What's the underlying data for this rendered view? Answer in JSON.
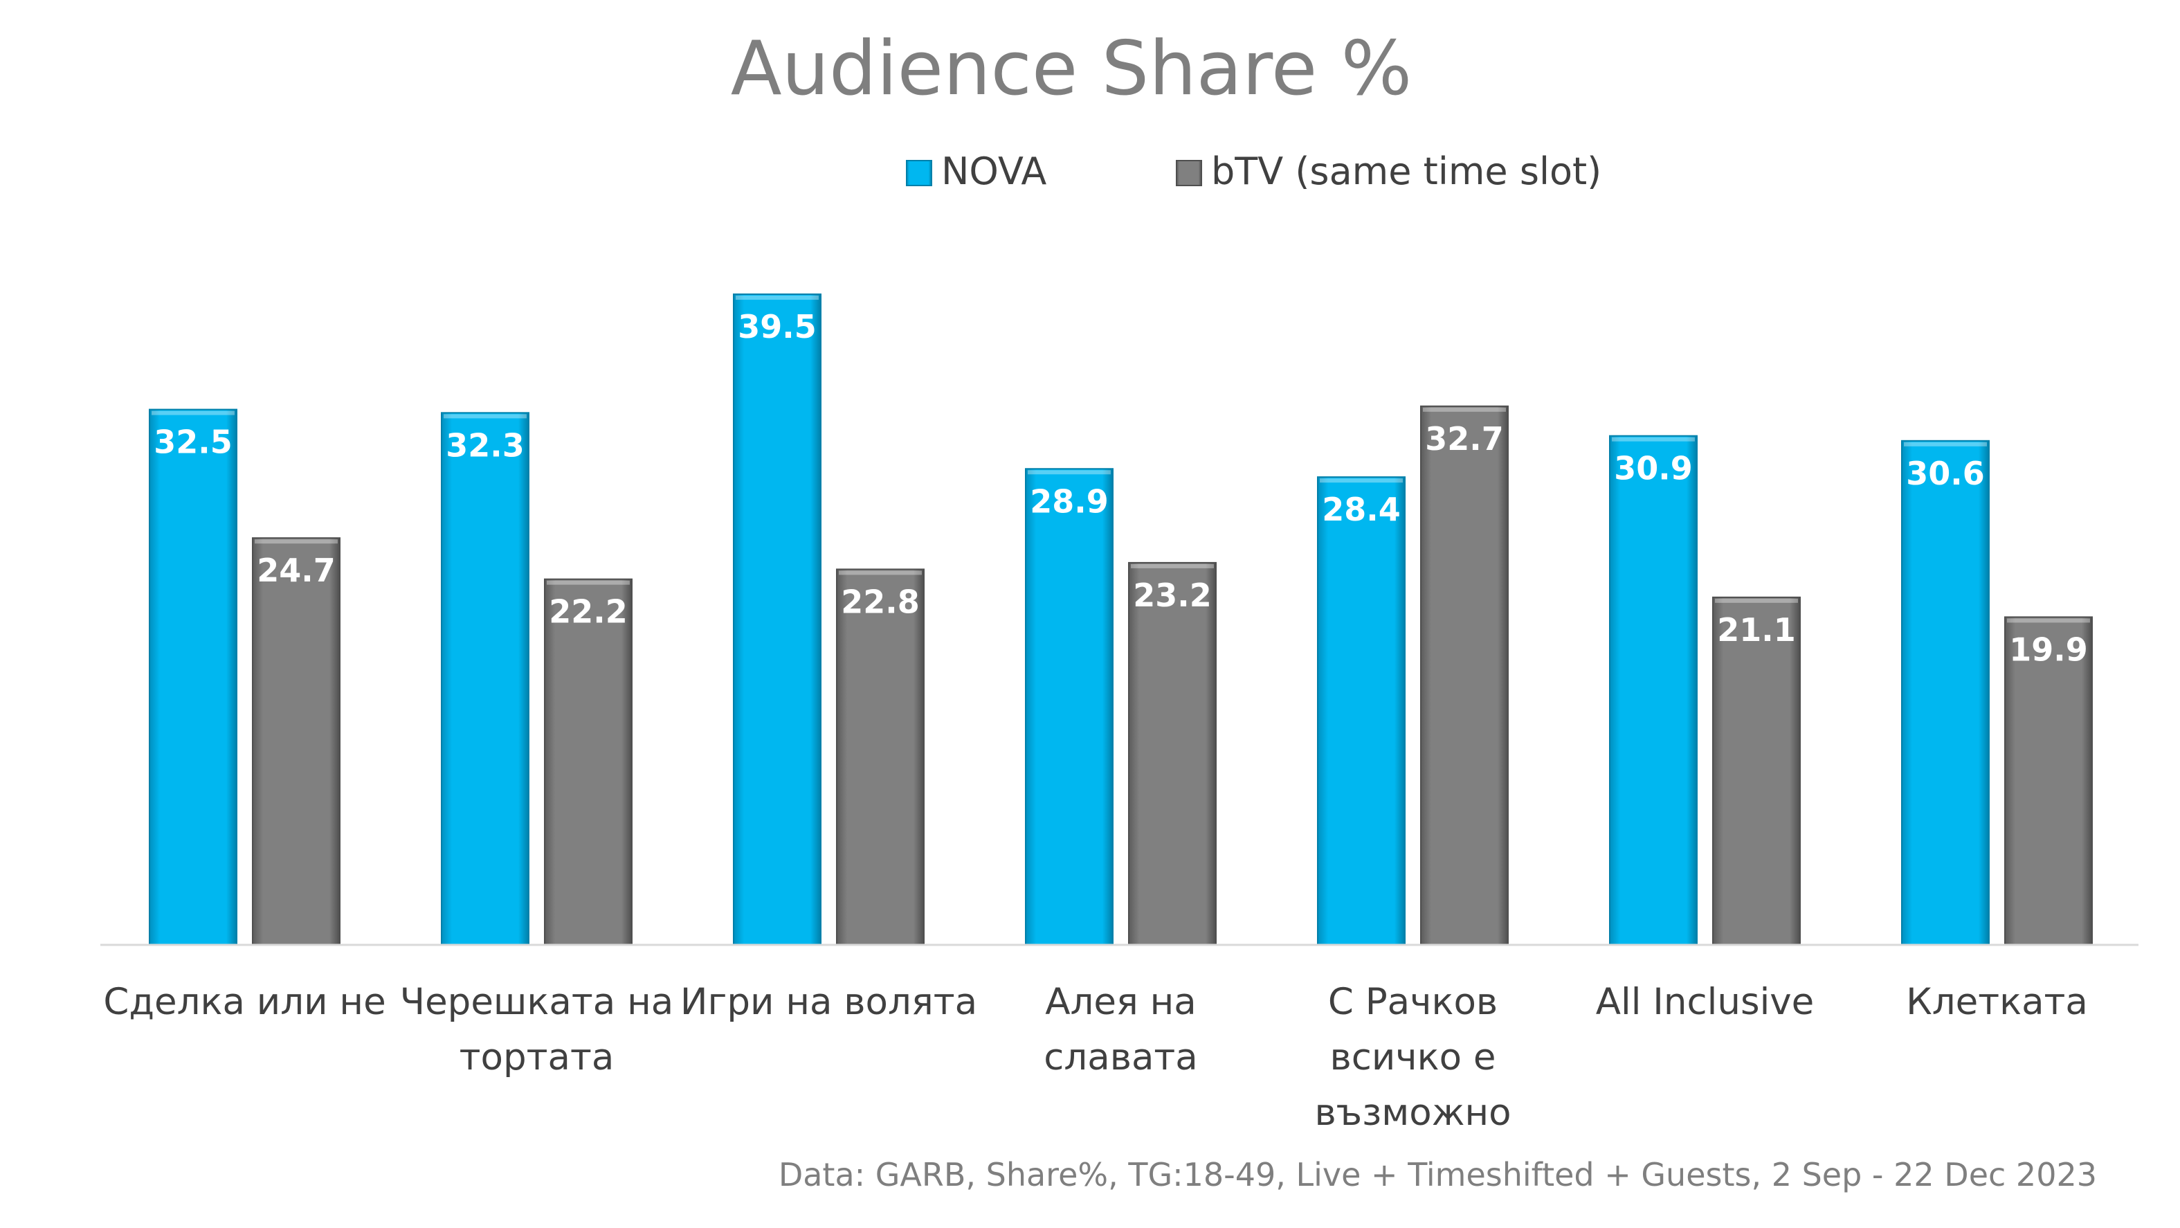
{
  "chart_data": {
    "type": "bar",
    "title": "Audience Share %",
    "categories": [
      [
        "Сделка или не"
      ],
      [
        "Черешката на",
        "тортата"
      ],
      [
        "Игри на волята"
      ],
      [
        "Алея на",
        "славата"
      ],
      [
        "С Рачков",
        "всичко е",
        "възможно"
      ],
      [
        "All Inclusive"
      ],
      [
        "Клетката"
      ]
    ],
    "series": [
      {
        "name": "NOVA",
        "color": "#00b7f0",
        "values": [
          32.5,
          32.3,
          39.5,
          28.9,
          28.4,
          30.9,
          30.6
        ]
      },
      {
        "name": "bTV (same time slot)",
        "color": "#7f7f7f",
        "values": [
          24.7,
          22.2,
          22.8,
          23.2,
          32.7,
          21.1,
          19.9
        ]
      }
    ],
    "ylim": [
      0,
      40
    ],
    "grid": false,
    "legend_position": "top-center",
    "xlabel": "",
    "ylabel": "",
    "source_note": "Data: GARB, Share%, TG:18-49, Live + Timeshifted + Guests, 2 Sep - 22 Dec 2023"
  }
}
